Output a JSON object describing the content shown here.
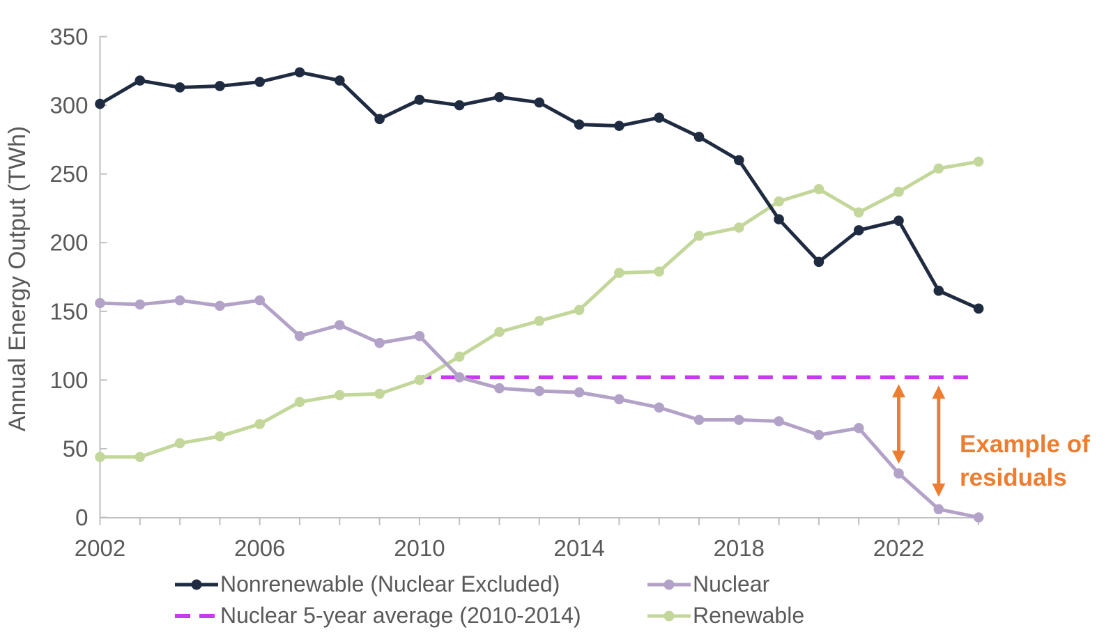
{
  "chart_data": {
    "type": "line",
    "title": "",
    "xlabel": "",
    "ylabel": "Annual Energy Output (TWh)",
    "ylim": [
      0,
      350
    ],
    "y_ticks": [
      0,
      50,
      100,
      150,
      200,
      250,
      300,
      350
    ],
    "x_label_years": [
      2002,
      2006,
      2010,
      2014,
      2018,
      2022
    ],
    "grid": false,
    "legend_position": "bottom",
    "years": [
      2002,
      2003,
      2004,
      2005,
      2006,
      2007,
      2008,
      2009,
      2010,
      2011,
      2012,
      2013,
      2014,
      2015,
      2016,
      2017,
      2018,
      2019,
      2020,
      2021,
      2022,
      2023,
      2024
    ],
    "series": [
      {
        "name": "Nonrenewable (Nuclear Excluded)",
        "color": "#1f2b41",
        "values": [
          301,
          318,
          313,
          314,
          317,
          324,
          318,
          290,
          304,
          300,
          306,
          302,
          286,
          285,
          291,
          277,
          260,
          217,
          186,
          209,
          216,
          165,
          152
        ]
      },
      {
        "name": "Nuclear",
        "color": "#b3a2c7",
        "values": [
          156,
          155,
          158,
          154,
          158,
          132,
          140,
          127,
          132,
          102,
          94,
          92,
          91,
          86,
          80,
          71,
          71,
          70,
          60,
          65,
          32,
          6,
          0
        ]
      },
      {
        "name": "Renewable",
        "color": "#c3d79b",
        "values": [
          44,
          44,
          54,
          59,
          68,
          84,
          89,
          90,
          100,
          117,
          135,
          143,
          151,
          178,
          179,
          205,
          211,
          230,
          239,
          222,
          237,
          254,
          259
        ]
      }
    ],
    "reference_line": {
      "name": "Nuclear 5-year average (2010-2014)",
      "color": "#c43ceb",
      "value": 102,
      "start_year": 2010,
      "end_year": 2024
    },
    "residual_arrows": [
      {
        "year": 2022,
        "from_value": 97,
        "to_value": 39
      },
      {
        "year": 2023,
        "from_value": 96,
        "to_value": 15
      }
    ],
    "annotation": {
      "lines": [
        "Example of",
        "residuals"
      ],
      "color": "#ed7d31"
    }
  },
  "legend": {
    "items": [
      {
        "label": "Nonrenewable (Nuclear Excluded)",
        "marker": "line-dot",
        "color": "#1f2b41"
      },
      {
        "label": "Nuclear",
        "marker": "line-dot",
        "color": "#b3a2c7"
      },
      {
        "label": "Nuclear 5-year average (2010-2014)",
        "marker": "dashed",
        "color": "#c43ceb"
      },
      {
        "label": "Renewable",
        "marker": "line-dot",
        "color": "#c3d79b"
      }
    ]
  },
  "colors": {
    "axis": "#bfbfbf",
    "tick_label": "#595959",
    "axis_title": "#595959",
    "background": "#ffffff"
  }
}
